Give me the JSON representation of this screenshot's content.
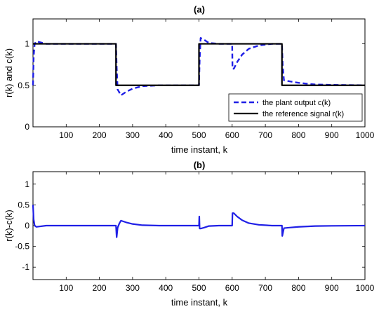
{
  "chart_data": [
    {
      "type": "line",
      "title": "(a)",
      "xlabel": "time instant, k",
      "ylabel": "r(k) and c(k)",
      "xlim": [
        0,
        1000
      ],
      "ylim": [
        0,
        1.3
      ],
      "xticks": [
        100,
        200,
        300,
        400,
        500,
        600,
        700,
        800,
        900,
        1000
      ],
      "yticks": [
        0,
        0.5,
        1
      ],
      "grid": false,
      "legend_position": "bottom-right",
      "series": [
        {
          "name": "the plant output c(k)",
          "color": "#1f1fe6",
          "style": "dashed",
          "points": [
            [
              0,
              0.5
            ],
            [
              2,
              0.85
            ],
            [
              5,
              1.0
            ],
            [
              10,
              1.03
            ],
            [
              20,
              1.02
            ],
            [
              40,
              1.0
            ],
            [
              100,
              1.0
            ],
            [
              250,
              1.0
            ],
            [
              252,
              0.72
            ],
            [
              255,
              0.45
            ],
            [
              265,
              0.38
            ],
            [
              280,
              0.42
            ],
            [
              300,
              0.46
            ],
            [
              330,
              0.49
            ],
            [
              380,
              0.5
            ],
            [
              500,
              0.5
            ],
            [
              502,
              0.8
            ],
            [
              505,
              1.07
            ],
            [
              515,
              1.05
            ],
            [
              530,
              1.01
            ],
            [
              560,
              1.0
            ],
            [
              600,
              1.0
            ],
            [
              601,
              0.7
            ],
            [
              605,
              0.7
            ],
            [
              615,
              0.78
            ],
            [
              630,
              0.87
            ],
            [
              650,
              0.94
            ],
            [
              680,
              0.98
            ],
            [
              720,
              1.0
            ],
            [
              750,
              1.0
            ],
            [
              752,
              0.75
            ],
            [
              756,
              0.56
            ],
            [
              770,
              0.55
            ],
            [
              800,
              0.53
            ],
            [
              850,
              0.51
            ],
            [
              900,
              0.505
            ],
            [
              1000,
              0.5
            ]
          ]
        },
        {
          "name": "the reference signal r(k)",
          "color": "#000000",
          "style": "solid",
          "points": [
            [
              0,
              1.0
            ],
            [
              250,
              1.0
            ],
            [
              250,
              0.5
            ],
            [
              500,
              0.5
            ],
            [
              500,
              1.0
            ],
            [
              750,
              1.0
            ],
            [
              750,
              0.5
            ],
            [
              1000,
              0.5
            ]
          ]
        }
      ]
    },
    {
      "type": "line",
      "title": "(b)",
      "xlabel": "time instant, k",
      "ylabel": "r(k)-c(k)",
      "xlim": [
        0,
        1000
      ],
      "ylim": [
        -1.3,
        1.3
      ],
      "xticks": [
        100,
        200,
        300,
        400,
        500,
        600,
        700,
        800,
        900,
        1000
      ],
      "yticks": [
        -1,
        -0.5,
        0,
        0.5,
        1
      ],
      "grid": false,
      "series": [
        {
          "color": "#1f1fe6",
          "style": "solid",
          "points": [
            [
              0,
              0.5
            ],
            [
              2,
              0.15
            ],
            [
              5,
              0.0
            ],
            [
              10,
              -0.03
            ],
            [
              20,
              -0.02
            ],
            [
              40,
              0.0
            ],
            [
              250,
              0.0
            ],
            [
              252,
              -0.28
            ],
            [
              255,
              -0.05
            ],
            [
              260,
              0.05
            ],
            [
              265,
              0.12
            ],
            [
              280,
              0.08
            ],
            [
              300,
              0.04
            ],
            [
              330,
              0.01
            ],
            [
              380,
              0.0
            ],
            [
              500,
              0.0
            ],
            [
              501,
              0.22
            ],
            [
              502,
              -0.07
            ],
            [
              505,
              -0.07
            ],
            [
              515,
              -0.05
            ],
            [
              530,
              -0.01
            ],
            [
              560,
              0.0
            ],
            [
              600,
              0.0
            ],
            [
              601,
              0.3
            ],
            [
              605,
              0.3
            ],
            [
              615,
              0.22
            ],
            [
              630,
              0.13
            ],
            [
              650,
              0.06
            ],
            [
              680,
              0.02
            ],
            [
              720,
              0.0
            ],
            [
              750,
              0.0
            ],
            [
              751,
              -0.25
            ],
            [
              756,
              -0.06
            ],
            [
              770,
              -0.05
            ],
            [
              800,
              -0.03
            ],
            [
              850,
              -0.01
            ],
            [
              900,
              -0.005
            ],
            [
              1000,
              0.0
            ]
          ]
        }
      ]
    }
  ]
}
